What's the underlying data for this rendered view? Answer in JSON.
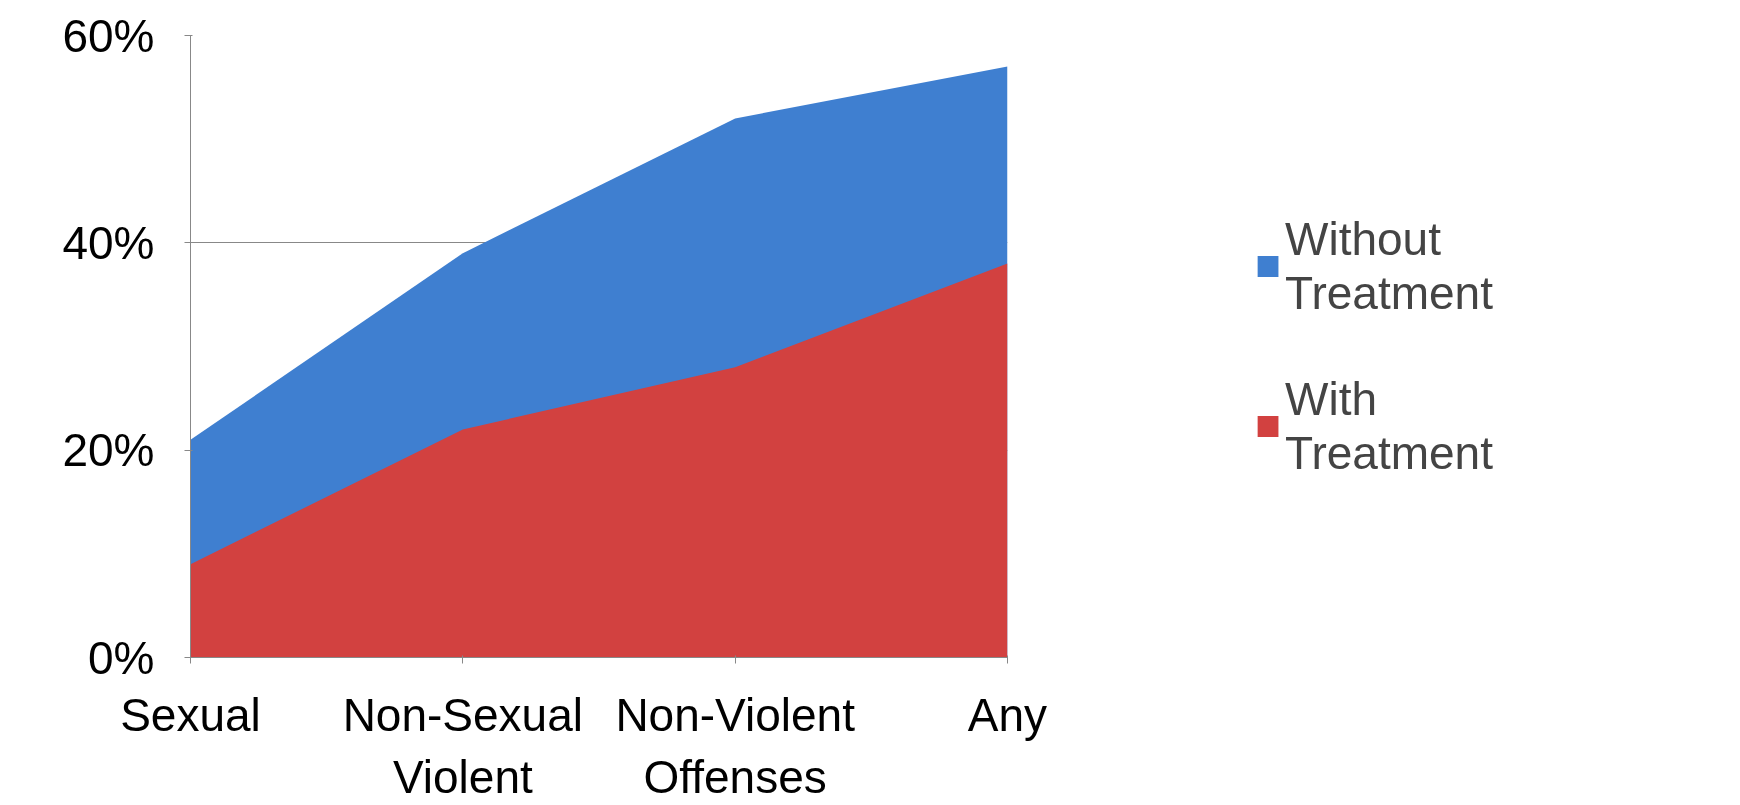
{
  "chart_data": {
    "type": "area",
    "categories": [
      "Sexual",
      "Non-Sexual Violent",
      "Non-Violent Offenses",
      "Any"
    ],
    "series": [
      {
        "name": "Without Treatment",
        "color": "#3f7fd0",
        "values": [
          21,
          39,
          52,
          57
        ]
      },
      {
        "name": "With Treatment",
        "color": "#d24140",
        "values": [
          9,
          22,
          28,
          38
        ]
      }
    ],
    "ylim": [
      0,
      60
    ],
    "yticks": [
      {
        "value": 0,
        "label": "0%"
      },
      {
        "value": 20,
        "label": "20%"
      },
      {
        "value": 40,
        "label": "40%"
      },
      {
        "value": 60,
        "label": "60%"
      }
    ],
    "grid": "y",
    "legend": "right"
  }
}
